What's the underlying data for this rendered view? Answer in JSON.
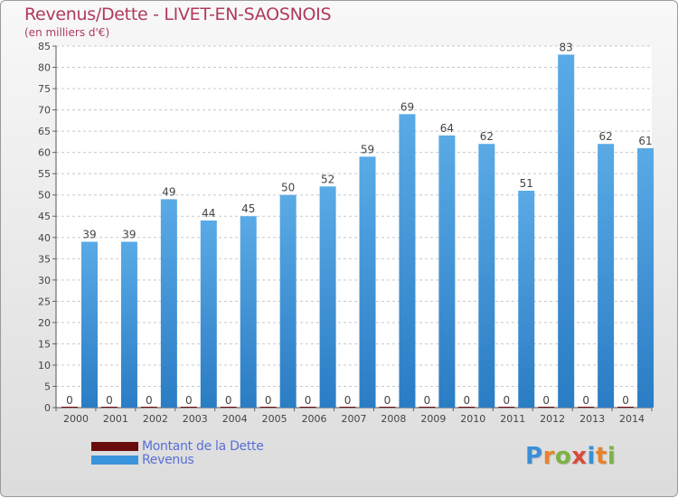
{
  "chart_data": {
    "type": "bar",
    "title": "Revenus/Dette - LIVET-EN-SAOSNOIS",
    "subtitle": "(en milliers d'€)",
    "categories": [
      "2000",
      "2001",
      "2002",
      "2003",
      "2004",
      "2005",
      "2006",
      "2007",
      "2008",
      "2009",
      "2010",
      "2011",
      "2012",
      "2013",
      "2014"
    ],
    "series": [
      {
        "name": "Montant de la Dette",
        "color": "#6b0c0c",
        "values": [
          0,
          0,
          0,
          0,
          0,
          0,
          0,
          0,
          0,
          0,
          0,
          0,
          0,
          0,
          0
        ]
      },
      {
        "name": "Revenus",
        "color": "#3c94dc",
        "values": [
          39,
          39,
          49,
          44,
          45,
          50,
          52,
          59,
          69,
          64,
          62,
          51,
          83,
          62,
          61
        ]
      }
    ],
    "ylim": [
      0,
      85
    ],
    "yticks": [
      0,
      5,
      10,
      15,
      20,
      25,
      30,
      35,
      40,
      45,
      50,
      55,
      60,
      65,
      70,
      75,
      80,
      85
    ],
    "grid": "horizontal dashed",
    "legend": "bottom-left",
    "data_labels": true
  },
  "logo": {
    "letters": [
      "P",
      "r",
      "o",
      "x",
      "i",
      "t",
      "i"
    ],
    "colors": [
      "#3a8fd6",
      "#e8822a",
      "#7cb342",
      "#d94a3a",
      "#3a8fd6",
      "#e8822a",
      "#7cb342"
    ]
  }
}
